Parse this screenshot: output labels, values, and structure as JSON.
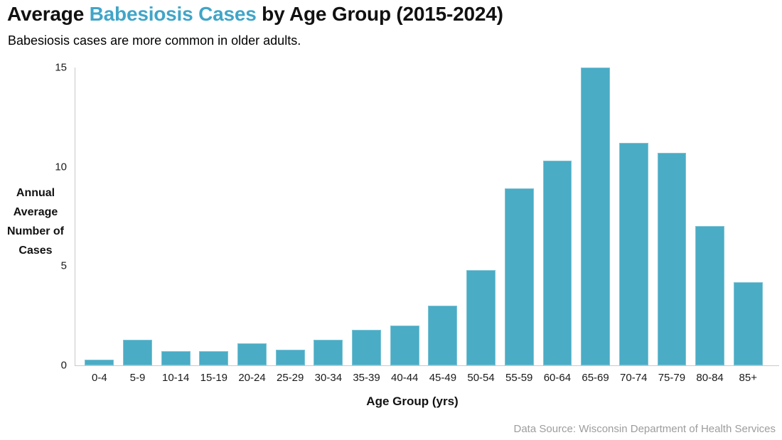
{
  "title": {
    "prefix": "Average ",
    "highlight": "Babesiosis Cases",
    "suffix": " by Age Group (2015-2024)"
  },
  "subtitle": "Babesiosis cases are more common in older adults.",
  "source_note": "Data Source: Wisconsin Department of Health Services",
  "colors": {
    "bar": "#4aacc5",
    "title_accent": "#41a5c8",
    "axis_line": "#c9c9c9",
    "source_text": "#9d9d9d"
  },
  "chart_data": {
    "type": "bar",
    "title": "Average Babesiosis Cases by Age Group (2015-2024)",
    "subtitle": "Babesiosis cases are more common in older adults.",
    "categories": [
      "0-4",
      "5-9",
      "10-14",
      "15-19",
      "20-24",
      "25-29",
      "30-34",
      "35-39",
      "40-44",
      "45-49",
      "50-54",
      "55-59",
      "60-64",
      "65-69",
      "70-74",
      "75-79",
      "80-84",
      "85+"
    ],
    "values": [
      0.3,
      1.3,
      0.7,
      0.7,
      1.1,
      0.8,
      1.3,
      1.8,
      2.0,
      3.0,
      4.8,
      8.9,
      10.3,
      15.0,
      11.2,
      10.7,
      7.0,
      4.2
    ],
    "xlabel": "Age Group (yrs)",
    "ylabel_lines": [
      "Annual",
      "Average",
      "Number of",
      "Cases"
    ],
    "yticks": [
      0,
      5,
      10,
      15
    ],
    "ylim": [
      0,
      15
    ],
    "grid": false,
    "legend": false,
    "bar_color": "#4aacc5",
    "annotation": "Data Source: Wisconsin Department of Health Services"
  }
}
